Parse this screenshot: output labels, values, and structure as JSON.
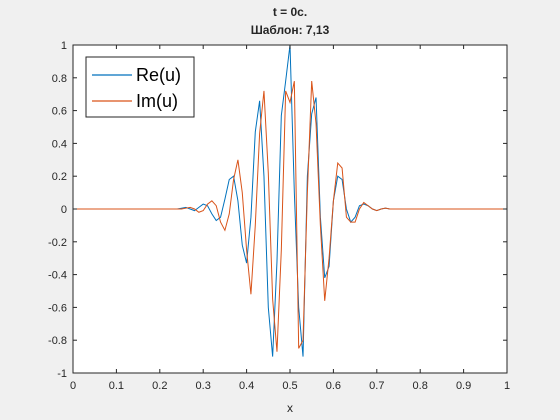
{
  "chart_data": {
    "type": "line",
    "title": "t = 0c.",
    "subtitle": "Шаблон: 7,13",
    "xlabel": "x",
    "ylabel": "",
    "xlim": [
      0,
      1
    ],
    "ylim": [
      -1,
      1
    ],
    "x_ticks": [
      "0",
      "0.1",
      "0.2",
      "0.3",
      "0.4",
      "0.5",
      "0.6",
      "0.7",
      "0.8",
      "0.9",
      "1"
    ],
    "y_ticks": [
      "1",
      "0.8",
      "0.6",
      "0.4",
      "0.2",
      "0",
      "-0.2",
      "-0.4",
      "-0.6",
      "-0.8",
      "-1"
    ],
    "grid": false,
    "legend_position": "top-left",
    "x": [
      0,
      0.01,
      0.02,
      0.03,
      0.04,
      0.05,
      0.06,
      0.07,
      0.08,
      0.09,
      0.1,
      0.11,
      0.12,
      0.13,
      0.14,
      0.15,
      0.16,
      0.17,
      0.18,
      0.19,
      0.2,
      0.21,
      0.22,
      0.23,
      0.24,
      0.25,
      0.26,
      0.27,
      0.28,
      0.29,
      0.3,
      0.31,
      0.32,
      0.33,
      0.34,
      0.35,
      0.36,
      0.37,
      0.38,
      0.39,
      0.4,
      0.41,
      0.42,
      0.43,
      0.44,
      0.45,
      0.46,
      0.47,
      0.48,
      0.49,
      0.5,
      0.51,
      0.52,
      0.53,
      0.54,
      0.55,
      0.56,
      0.57,
      0.58,
      0.59,
      0.6,
      0.61,
      0.62,
      0.63,
      0.64,
      0.65,
      0.66,
      0.67,
      0.68,
      0.69,
      0.7,
      0.71,
      0.72,
      0.73,
      0.74,
      0.75,
      0.76,
      0.77,
      0.78,
      0.79,
      0.8,
      0.81,
      0.82,
      0.83,
      0.84,
      0.85,
      0.86,
      0.87,
      0.88,
      0.89,
      0.9,
      0.91,
      0.92,
      0.93,
      0.94,
      0.95,
      0.96,
      0.97,
      0.98,
      0.99,
      1.0
    ],
    "series": [
      {
        "name": "Re(u)",
        "color": "#0072BD",
        "values": [
          0,
          0,
          0,
          0,
          0,
          0,
          0,
          0,
          0,
          0,
          0,
          0,
          0,
          0,
          0,
          0,
          0,
          0,
          0,
          0,
          0,
          0,
          0,
          0,
          0,
          0.005,
          0.01,
          0.0,
          -0.01,
          0.01,
          0.03,
          0.02,
          -0.03,
          -0.07,
          -0.05,
          0.06,
          0.18,
          0.2,
          0.05,
          -0.22,
          -0.33,
          -0.05,
          0.47,
          0.66,
          0.2,
          -0.6,
          -0.9,
          -0.32,
          0.57,
          0.78,
          1.0,
          0.1,
          -0.6,
          -0.9,
          0.2,
          0.58,
          0.68,
          -0.05,
          -0.42,
          -0.35,
          0.05,
          0.2,
          0.18,
          0.0,
          -0.08,
          -0.05,
          0.02,
          0.03,
          0.02,
          0.0,
          -0.01,
          0.0,
          0.005,
          0,
          0,
          0,
          0,
          0,
          0,
          0,
          0,
          0,
          0,
          0,
          0,
          0,
          0,
          0,
          0,
          0,
          0,
          0,
          0,
          0,
          0,
          0,
          0,
          0,
          0,
          0,
          0
        ]
      },
      {
        "name": "Im(u)",
        "color": "#D95319",
        "values": [
          0,
          0,
          0,
          0,
          0,
          0,
          0,
          0,
          0,
          0,
          0,
          0,
          0,
          0,
          0,
          0,
          0,
          0,
          0,
          0,
          0,
          0,
          0,
          0,
          0,
          0,
          0.005,
          0.01,
          0.0,
          -0.02,
          -0.01,
          0.03,
          0.05,
          0.02,
          -0.08,
          -0.13,
          -0.03,
          0.18,
          0.3,
          0.1,
          -0.25,
          -0.52,
          -0.1,
          0.46,
          0.72,
          0.22,
          -0.55,
          -0.87,
          -0.25,
          0.72,
          0.65,
          0.78,
          -0.85,
          -0.8,
          0.1,
          0.78,
          0.52,
          -0.1,
          -0.56,
          -0.3,
          0.05,
          0.28,
          0.25,
          -0.05,
          -0.08,
          -0.08,
          0.0,
          0.04,
          0.02,
          0.0,
          -0.01,
          0.0,
          0.005,
          0,
          0,
          0,
          0,
          0,
          0,
          0,
          0,
          0,
          0,
          0,
          0,
          0,
          0,
          0,
          0,
          0,
          0,
          0,
          0,
          0,
          0,
          0,
          0,
          0,
          0,
          0,
          0
        ]
      }
    ]
  }
}
